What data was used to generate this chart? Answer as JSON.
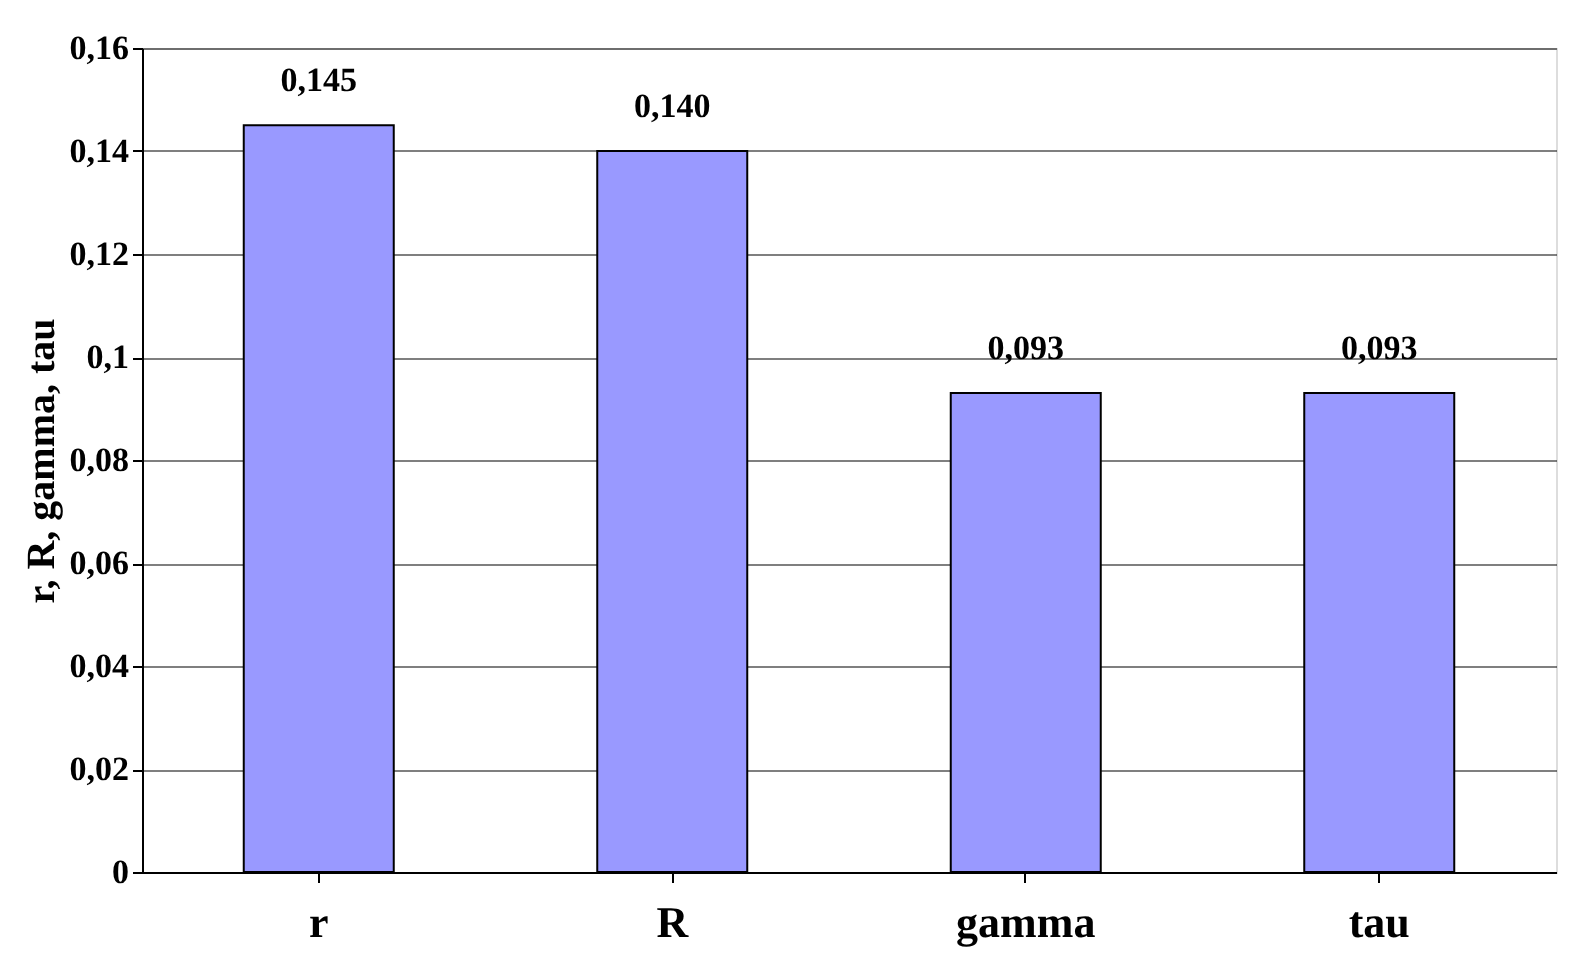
{
  "chart_data": {
    "type": "bar",
    "ylabel": "r, R, gamma, tau",
    "categories": [
      "r",
      "R",
      "gamma",
      "tau"
    ],
    "values": [
      0.145,
      0.14,
      0.093,
      0.093
    ],
    "color": "#9999ff",
    "value_labels": [
      "0,145",
      "0,140",
      "0,093",
      "0,093"
    ],
    "ylim": [
      0,
      0.16
    ],
    "yticks": [
      {
        "value": 0,
        "label": "0"
      },
      {
        "value": 0.02,
        "label": "0,02"
      },
      {
        "value": 0.04,
        "label": "0,04"
      },
      {
        "value": 0.06,
        "label": "0,06"
      },
      {
        "value": 0.08,
        "label": "0,08"
      },
      {
        "value": 0.1,
        "label": "0,1"
      },
      {
        "value": 0.12,
        "label": "0,12"
      },
      {
        "value": 0.14,
        "label": "0,14"
      },
      {
        "value": 0.16,
        "label": "0,16"
      }
    ],
    "grid": "y"
  }
}
